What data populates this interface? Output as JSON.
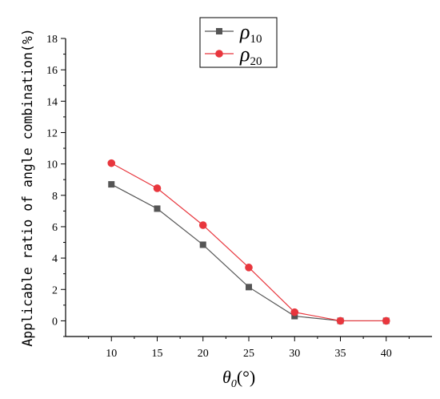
{
  "chart_data": {
    "type": "line",
    "x": [
      10,
      15,
      20,
      25,
      30,
      35,
      40
    ],
    "xlim": [
      5,
      45
    ],
    "ylim": [
      -1,
      18
    ],
    "xticks": [
      10,
      15,
      20,
      25,
      30,
      35,
      40
    ],
    "yticks": [
      0,
      2,
      4,
      6,
      8,
      10,
      12,
      14,
      16,
      18
    ],
    "xlabel": "θ0(°)",
    "ylabel": "Applicable ratio of angle combination(%)",
    "legend_position": "top-center",
    "series": [
      {
        "name": "ρ10",
        "marker": "square",
        "color": "#555555",
        "values": [
          8.7,
          7.15,
          4.85,
          2.15,
          0.3,
          0.0,
          0.0
        ]
      },
      {
        "name": "ρ20",
        "marker": "circle",
        "color": "#e8363d",
        "values": [
          10.05,
          8.45,
          6.1,
          3.4,
          0.55,
          0.0,
          0.0
        ]
      }
    ]
  }
}
